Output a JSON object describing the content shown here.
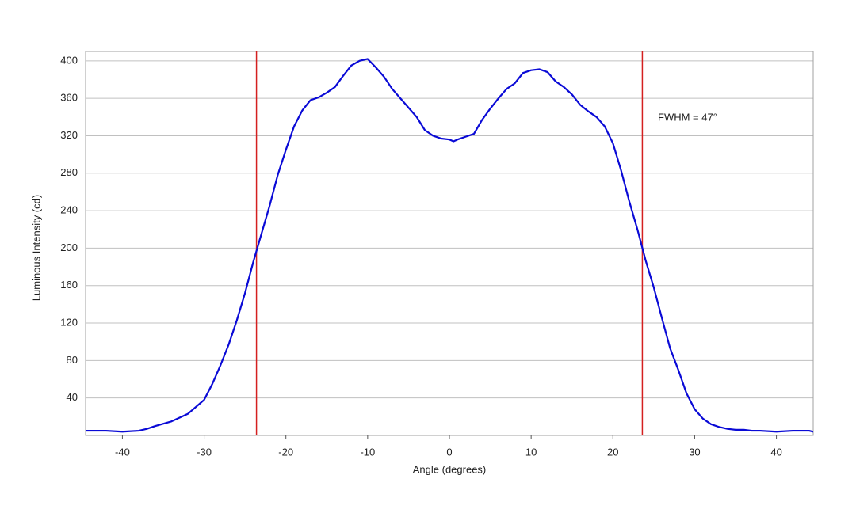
{
  "chart_data": {
    "type": "line",
    "x_label": "Angle (degrees)",
    "y_label": "Luminous Intensity (cd)",
    "xlim": [
      -44.5,
      44.5
    ],
    "ylim": [
      0,
      410
    ],
    "xticks": [
      -40,
      -30,
      -20,
      -10,
      0,
      10,
      20,
      30,
      40
    ],
    "yticks": [
      40,
      80,
      120,
      160,
      200,
      240,
      280,
      320,
      360,
      400
    ],
    "grid": true,
    "x": [
      -44.5,
      -42,
      -40,
      -38,
      -37,
      -36,
      -34,
      -32,
      -30,
      -29,
      -28,
      -27,
      -26,
      -25,
      -24,
      -23,
      -22,
      -21,
      -20,
      -19,
      -18,
      -17,
      -16,
      -15,
      -14,
      -13,
      -12,
      -11,
      -10,
      -9,
      -8,
      -7,
      -6,
      -5,
      -4,
      -3,
      -2,
      -1,
      0,
      0.5,
      1,
      2,
      3,
      4,
      5,
      6,
      7,
      8,
      9,
      10,
      11,
      12,
      13,
      14,
      15,
      16,
      17,
      18,
      19,
      20,
      21,
      22,
      23,
      24,
      25,
      26,
      27,
      28,
      29,
      30,
      31,
      32,
      33,
      34,
      35,
      36,
      37,
      38,
      40,
      42,
      44,
      44.5
    ],
    "series": [
      {
        "color": "#0a0ad6",
        "values": [
          5,
          5,
          4,
          5,
          7,
          10,
          15,
          23,
          38,
          55,
          75,
          97,
          123,
          152,
          185,
          215,
          245,
          278,
          305,
          330,
          347,
          358,
          361,
          366,
          372,
          384,
          395,
          400,
          402,
          393,
          383,
          370,
          360,
          350,
          340,
          326,
          320,
          317,
          316,
          314,
          316,
          319,
          322,
          337,
          349,
          360,
          370,
          376,
          387,
          390,
          391,
          388,
          378,
          372,
          364,
          353,
          346,
          340,
          330,
          312,
          283,
          250,
          220,
          187,
          158,
          125,
          93,
          70,
          45,
          28,
          18,
          12,
          9,
          7,
          6,
          6,
          5,
          5,
          4,
          5,
          5,
          4
        ]
      }
    ],
    "vlines": [
      -23.6,
      23.6
    ],
    "vline_color": "#d42020",
    "annotation": {
      "text": "FWHM = 47°",
      "x": 25.5,
      "y": 339
    }
  }
}
